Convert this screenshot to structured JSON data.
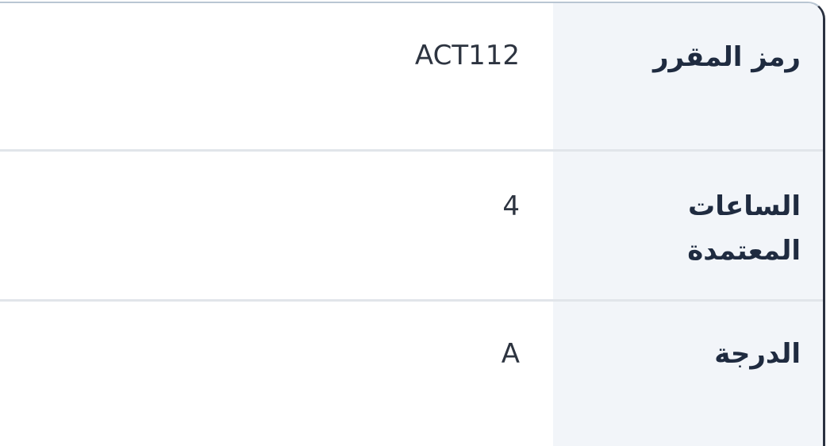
{
  "rows": [
    {
      "label": "رمز المقرر",
      "value": "ACT112"
    },
    {
      "label": "الساعات المعتمدة",
      "value": "4"
    },
    {
      "label": "الدرجة",
      "value": "A"
    }
  ]
}
